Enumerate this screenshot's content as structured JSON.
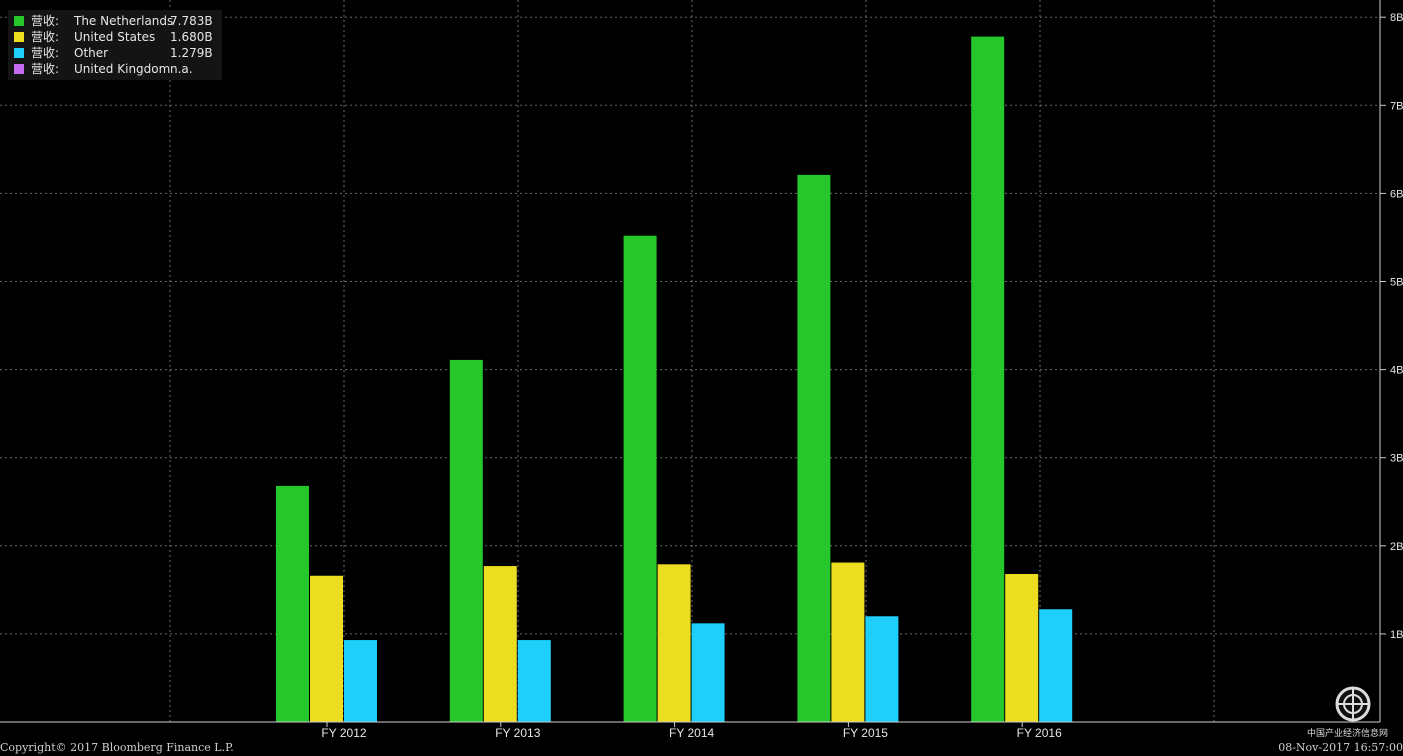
{
  "chart_data": {
    "type": "bar",
    "categories": [
      "FY 2012",
      "FY 2013",
      "FY 2014",
      "FY 2015",
      "FY 2016"
    ],
    "series": [
      {
        "name": "营收: The Netherlands",
        "legend_name": "The Netherlands",
        "legend_value": "7.783B",
        "color": "#25c72b",
        "values": [
          2.68,
          4.11,
          5.52,
          6.21,
          7.78
        ]
      },
      {
        "name": "营收: United States",
        "legend_name": "United States",
        "legend_value": "1.680B",
        "color": "#ebdd1f",
        "values": [
          1.66,
          1.77,
          1.79,
          1.81,
          1.68
        ]
      },
      {
        "name": "营收: Other",
        "legend_name": "Other",
        "legend_value": "1.279B",
        "color": "#1ecffa",
        "values": [
          0.93,
          0.93,
          1.12,
          1.2,
          1.28
        ]
      },
      {
        "name": "营收: United Kingdom",
        "legend_name": "United Kingdom",
        "legend_value": "n.a.",
        "color": "#c36cf0",
        "values": [
          null,
          null,
          null,
          null,
          null
        ]
      }
    ],
    "legend_prefix": "营收:",
    "y_ticks": [
      "1B",
      "2B",
      "3B",
      "4B",
      "5B",
      "6B",
      "7B",
      "8B"
    ],
    "ylim": [
      0,
      8.3
    ],
    "grid": true,
    "legend_position": "top-left",
    "title": "",
    "xlabel": "",
    "ylabel": ""
  },
  "footer": {
    "copyright": "Copyright© 2017 Bloomberg Finance L.P.",
    "timestamp": "08-Nov-2017 16:57:00"
  },
  "watermark": {
    "text": "中国产业经济信息网"
  }
}
